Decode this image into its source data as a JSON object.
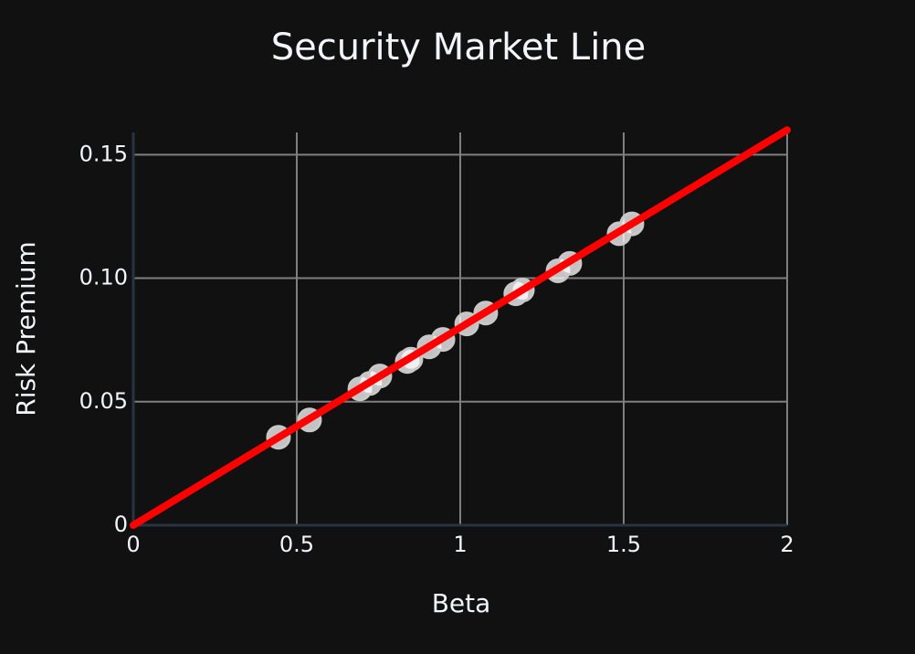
{
  "chart_data": {
    "type": "scatter",
    "title": "Security Market Line",
    "x_label": "Beta",
    "y_label": "Risk Premium",
    "xlim": [
      0,
      2
    ],
    "xticks": [
      0,
      0.5,
      1,
      1.5,
      2
    ],
    "ylim": [
      0,
      0.159
    ],
    "yticks": [
      0,
      0.05,
      {
        "value": 0.1,
        "label": "0.10"
      },
      0.15
    ],
    "grid": true,
    "series": [
      {
        "mode": "markers",
        "color": "#ffffff",
        "x": [
          0.444,
          0.539,
          0.693,
          0.723,
          0.754,
          0.838,
          0.849,
          0.905,
          0.947,
          1.02,
          1.078,
          1.17,
          1.19,
          1.299,
          1.335,
          1.486,
          1.525
        ],
        "values": [
          0.0356,
          0.0426,
          0.0552,
          0.0574,
          0.0604,
          0.0663,
          0.0672,
          0.0722,
          0.0752,
          0.0815,
          0.0859,
          0.0937,
          0.0952,
          0.103,
          0.106,
          0.118,
          0.122
        ]
      },
      {
        "mode": "lines",
        "color": "#ff0000",
        "x": [
          0,
          2
        ],
        "values": [
          0,
          0.16
        ]
      }
    ]
  }
}
